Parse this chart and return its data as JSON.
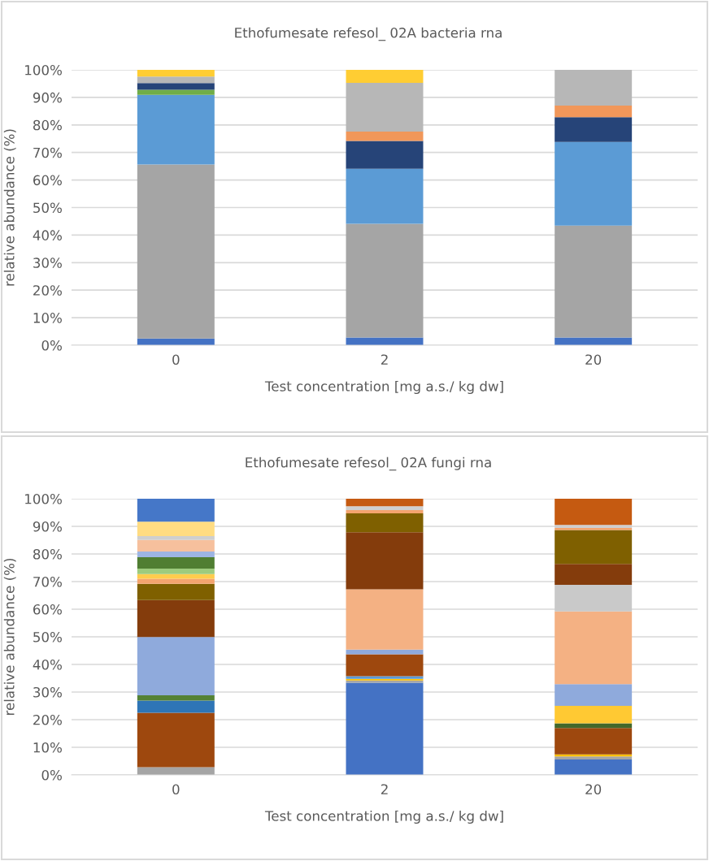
{
  "chart_data": [
    {
      "type": "bar",
      "stacked": true,
      "title": "Ethofumesate refesol_ 02A bacteria rna",
      "xlabel": "Test concentration [mg a.s./ kg dw]",
      "ylabel": "relative abundance (%)",
      "categories": [
        "0",
        "2",
        "20"
      ],
      "ylim": [
        0,
        100
      ],
      "yticks": [
        {
          "value": 0,
          "label": "0%"
        },
        {
          "value": 10,
          "label": "10%"
        },
        {
          "value": 20,
          "label": "20%"
        },
        {
          "value": 30,
          "label": "30%"
        },
        {
          "value": 40,
          "label": "40%"
        },
        {
          "value": 50,
          "label": "50%"
        },
        {
          "value": 60,
          "label": "60%"
        },
        {
          "value": 70,
          "label": "70%"
        },
        {
          "value": 80,
          "label": "80%"
        },
        {
          "value": 90,
          "label": "90%"
        },
        {
          "value": 100,
          "label": "100%"
        }
      ],
      "grid": "y",
      "legend": false,
      "series": [
        {
          "color": "#4472c4",
          "values": [
            2.4,
            2.8,
            2.8
          ]
        },
        {
          "color": "#a5a5a5",
          "values": [
            63.2,
            41.3,
            40.6
          ]
        },
        {
          "color": "#5b9bd5",
          "values": [
            25.3,
            20.0,
            30.4
          ]
        },
        {
          "color": "#70ad47",
          "values": [
            1.9,
            0,
            0
          ]
        },
        {
          "color": "#264478",
          "values": [
            2.4,
            10.1,
            9.0
          ]
        },
        {
          "color": "#f1975a",
          "values": [
            0,
            3.4,
            4.2
          ]
        },
        {
          "color": "#b7b7b7",
          "values": [
            2.4,
            17.7,
            13.0
          ]
        },
        {
          "color": "#ffcd33",
          "values": [
            2.4,
            4.7,
            0
          ]
        }
      ]
    },
    {
      "type": "bar",
      "stacked": true,
      "title": "Ethofumesate refesol_ 02A fungi rna",
      "xlabel": "Test concentration [mg a.s./ kg dw]",
      "ylabel": "relative abundance (%)",
      "categories": [
        "0",
        "2",
        "20"
      ],
      "ylim": [
        0,
        100
      ],
      "yticks": [
        {
          "value": 0,
          "label": "0%"
        },
        {
          "value": 10,
          "label": "10%"
        },
        {
          "value": 20,
          "label": "20%"
        },
        {
          "value": 30,
          "label": "30%"
        },
        {
          "value": 40,
          "label": "40%"
        },
        {
          "value": 50,
          "label": "50%"
        },
        {
          "value": 60,
          "label": "60%"
        },
        {
          "value": 70,
          "label": "70%"
        },
        {
          "value": 80,
          "label": "80%"
        },
        {
          "value": 90,
          "label": "90%"
        },
        {
          "value": 100,
          "label": "100%"
        }
      ],
      "grid": "y",
      "legend": false,
      "series": [
        {
          "color": "#4472c4",
          "values": [
            0,
            33.4,
            5.6
          ]
        },
        {
          "color": "#a5a5a5",
          "values": [
            2.8,
            0.8,
            1.1
          ]
        },
        {
          "color": "#ffc000",
          "values": [
            0,
            0.6,
            0.7
          ]
        },
        {
          "color": "#5b9bd5",
          "values": [
            0,
            0.9,
            0
          ]
        },
        {
          "color": "#9e480e",
          "values": [
            19.7,
            8.0,
            9.6
          ]
        },
        {
          "color": "#2e75b6",
          "values": [
            4.4,
            0,
            0
          ]
        },
        {
          "color": "#548235",
          "values": [
            1.9,
            0,
            0
          ]
        },
        {
          "color": "#43682b",
          "values": [
            0,
            0,
            1.7
          ]
        },
        {
          "color": "#ffc933",
          "values": [
            0,
            0,
            6.3
          ]
        },
        {
          "color": "#8faadc",
          "values": [
            21.1,
            1.7,
            7.9
          ]
        },
        {
          "color": "#f4b183",
          "values": [
            0,
            21.8,
            26.3
          ]
        },
        {
          "color": "#c9c9c9",
          "values": [
            0,
            0,
            9.6
          ]
        },
        {
          "color": "#843c0c",
          "values": [
            13.4,
            20.7,
            7.6
          ]
        },
        {
          "color": "#7f6000",
          "values": [
            5.9,
            6.8,
            12.3
          ]
        },
        {
          "color": "#f4a46e",
          "values": [
            1.8,
            1.2,
            0.7
          ]
        },
        {
          "color": "#ffcc4d",
          "values": [
            1.7,
            0,
            0
          ]
        },
        {
          "color": "#9dcb7e",
          "values": [
            2.0,
            0,
            0
          ]
        },
        {
          "color": "#507e32",
          "values": [
            4.1,
            0,
            0
          ]
        },
        {
          "color": "#9db5e3",
          "values": [
            2.1,
            0,
            0
          ]
        },
        {
          "color": "#f6c09d",
          "values": [
            4.2,
            0,
            0
          ]
        },
        {
          "color": "#cfcfcf",
          "values": [
            1.4,
            1.4,
            1.1
          ]
        },
        {
          "color": "#ffdc82",
          "values": [
            5.2,
            0,
            0
          ]
        },
        {
          "color": "#c55a11",
          "values": [
            0,
            2.8,
            9.5
          ]
        },
        {
          "color": "#4577c8",
          "values": [
            8.3,
            0,
            0
          ]
        }
      ]
    }
  ]
}
